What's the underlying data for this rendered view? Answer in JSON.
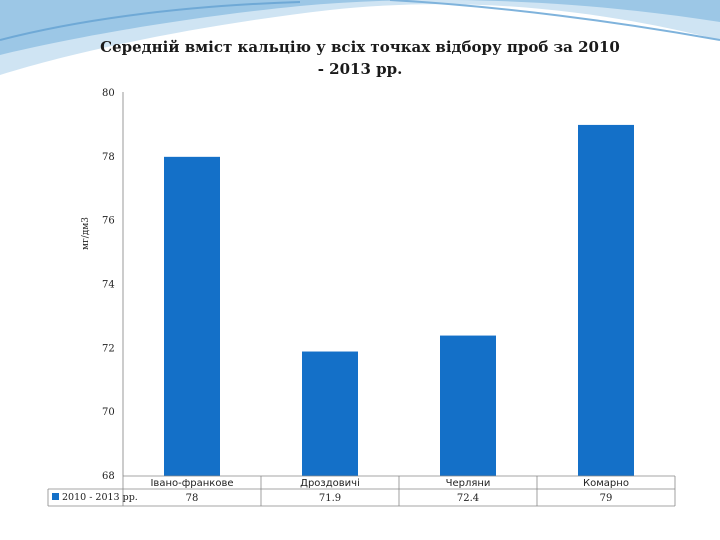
{
  "colors": {
    "bar": "#1470c8",
    "wave_dark": "#6fa9d6",
    "wave_light": "#bcd9ee"
  },
  "chart_data": {
    "type": "bar",
    "title_line1": "Середній вміст кальцію у всіх точках відбору проб за 2010",
    "title_line2": "- 2013 рр.",
    "ylabel": "мг/дм3",
    "xlabel": "",
    "ylim": [
      68,
      80
    ],
    "yticks": [
      80,
      78,
      76,
      74,
      72,
      70,
      68
    ],
    "grid": false,
    "categories": [
      "Івано-франкове",
      "Дроздовичі",
      "Черляни",
      "Комарно"
    ],
    "series": [
      {
        "name": "2010 - 2013 рр.",
        "values": [
          78,
          71.9,
          72.4,
          79
        ],
        "value_labels": [
          "78",
          "71.9",
          "72.4",
          "79"
        ]
      }
    ],
    "legend": "data-table-left"
  }
}
